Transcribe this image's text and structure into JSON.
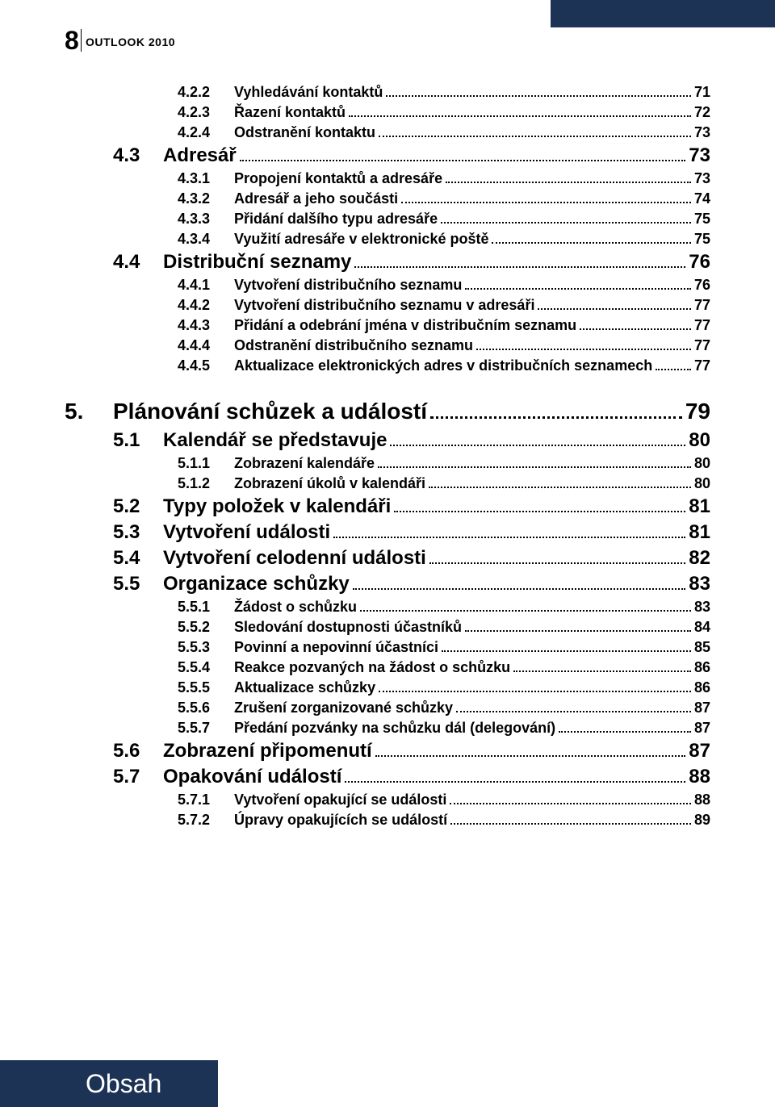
{
  "page_number": "8",
  "header_label": "OUTLOOK 2010",
  "footer_label": "Obsah",
  "colors": {
    "bar": "#1d3356",
    "text": "#000000",
    "footer_text": "#ffffff"
  },
  "toc": [
    {
      "level": 3,
      "num": "4.2.2",
      "title": "Vyhledávání kontaktů",
      "page": "71"
    },
    {
      "level": 3,
      "num": "4.2.3",
      "title": "Řazení kontaktů",
      "page": "72"
    },
    {
      "level": 3,
      "num": "4.2.4",
      "title": "Odstranění kontaktu",
      "page": "73"
    },
    {
      "level": 2,
      "num": "4.3",
      "title": "Adresář",
      "page": "73"
    },
    {
      "level": 3,
      "num": "4.3.1",
      "title": "Propojení kontaktů a adresáře",
      "page": "73"
    },
    {
      "level": 3,
      "num": "4.3.2",
      "title": "Adresář a jeho součásti",
      "page": "74"
    },
    {
      "level": 3,
      "num": "4.3.3",
      "title": "Přidání dalšího typu adresáře",
      "page": "75"
    },
    {
      "level": 3,
      "num": "4.3.4",
      "title": "Využití adresáře v elektronické poště",
      "page": "75"
    },
    {
      "level": 2,
      "num": "4.4",
      "title": "Distribuční seznamy",
      "page": "76"
    },
    {
      "level": 3,
      "num": "4.4.1",
      "title": "Vytvoření distribučního seznamu",
      "page": "76"
    },
    {
      "level": 3,
      "num": "4.4.2",
      "title": "Vytvoření distribučního seznamu v adresáři",
      "page": "77"
    },
    {
      "level": 3,
      "num": "4.4.3",
      "title": "Přidání a odebrání jména v distribučním seznamu",
      "page": "77"
    },
    {
      "level": 3,
      "num": "4.4.4",
      "title": "Odstranění distribučního seznamu",
      "page": "77"
    },
    {
      "level": 3,
      "num": "4.4.5",
      "title": "Aktualizace elektronických adres v distribučních seznamech",
      "page": "77"
    },
    {
      "level": 1,
      "num": "5.",
      "title": "Plánování schůzek a událostí",
      "page": "79"
    },
    {
      "level": 2,
      "num": "5.1",
      "title": "Kalendář se představuje",
      "page": "80"
    },
    {
      "level": 3,
      "num": "5.1.1",
      "title": "Zobrazení kalendáře",
      "page": "80"
    },
    {
      "level": 3,
      "num": "5.1.2",
      "title": "Zobrazení úkolů v kalendáři",
      "page": "80"
    },
    {
      "level": 2,
      "num": "5.2",
      "title": "Typy položek v kalendáři",
      "page": "81"
    },
    {
      "level": 2,
      "num": "5.3",
      "title": "Vytvoření události",
      "page": "81"
    },
    {
      "level": 2,
      "num": "5.4",
      "title": "Vytvoření celodenní události",
      "page": "82"
    },
    {
      "level": 2,
      "num": "5.5",
      "title": "Organizace schůzky",
      "page": "83"
    },
    {
      "level": 3,
      "num": "5.5.1",
      "title": "Žádost o schůzku",
      "page": "83"
    },
    {
      "level": 3,
      "num": "5.5.2",
      "title": "Sledování dostupnosti účastníků",
      "page": "84"
    },
    {
      "level": 3,
      "num": "5.5.3",
      "title": "Povinní a nepovinní účastníci",
      "page": "85"
    },
    {
      "level": 3,
      "num": "5.5.4",
      "title": "Reakce pozvaných na žádost o schůzku",
      "page": "86"
    },
    {
      "level": 3,
      "num": "5.5.5",
      "title": "Aktualizace schůzky",
      "page": "86"
    },
    {
      "level": 3,
      "num": "5.5.6",
      "title": "Zrušení zorganizované schůzky",
      "page": "87"
    },
    {
      "level": 3,
      "num": "5.5.7",
      "title": "Předání pozvánky na schůzku dál (delegování)",
      "page": "87"
    },
    {
      "level": 2,
      "num": "5.6",
      "title": "Zobrazení připomenutí",
      "page": "87"
    },
    {
      "level": 2,
      "num": "5.7",
      "title": "Opakování událostí",
      "page": "88"
    },
    {
      "level": 3,
      "num": "5.7.1",
      "title": "Vytvoření opakující se události",
      "page": "88"
    },
    {
      "level": 3,
      "num": "5.7.2",
      "title": "Úpravy opakujících se událostí",
      "page": "89"
    }
  ]
}
